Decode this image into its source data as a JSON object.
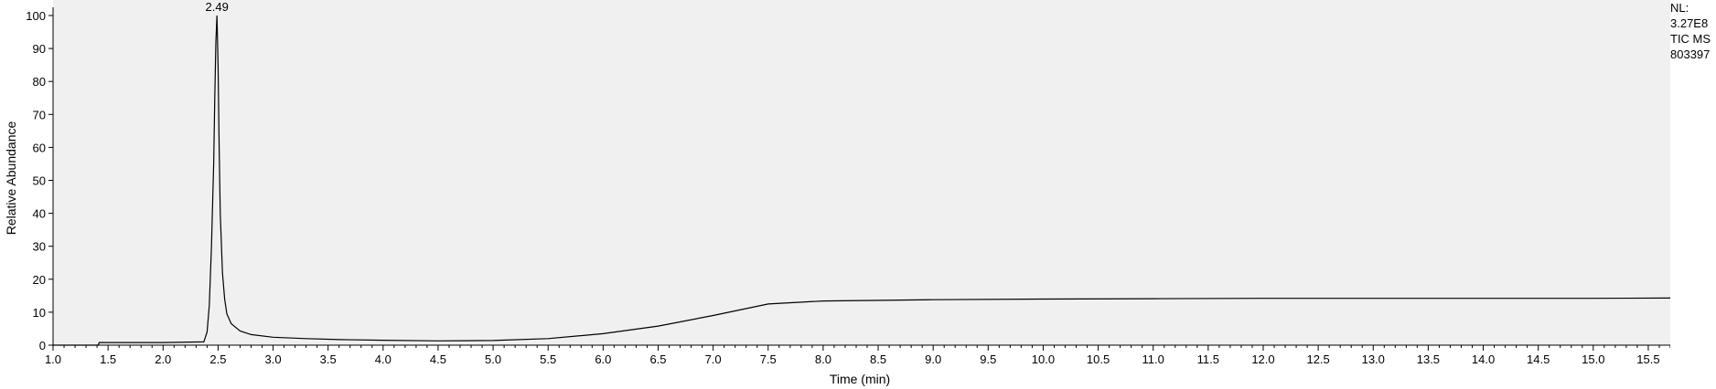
{
  "chart_data": {
    "type": "line",
    "xlabel": "Time (min)",
    "ylabel": "Relative Abundance",
    "xlim": [
      1.0,
      15.7
    ],
    "ylim": [
      0,
      100
    ],
    "xticks": [
      "1.0",
      "1.5",
      "2.0",
      "2.5",
      "3.0",
      "3.5",
      "4.0",
      "4.5",
      "5.0",
      "5.5",
      "6.0",
      "6.5",
      "7.0",
      "7.5",
      "8.0",
      "8.5",
      "9.0",
      "9.5",
      "10.0",
      "10.5",
      "11.0",
      "11.5",
      "12.0",
      "12.5",
      "13.0",
      "13.5",
      "14.0",
      "14.5",
      "15.0",
      "15.5"
    ],
    "yticks": [
      "0",
      "10",
      "20",
      "30",
      "40",
      "50",
      "60",
      "70",
      "80",
      "90",
      "100"
    ],
    "peak_label": "2.49",
    "grid": false,
    "series": [
      {
        "x": [
          1.0,
          1.41,
          1.42,
          2.0,
          2.37,
          2.4,
          2.42,
          2.44,
          2.46,
          2.47,
          2.48,
          2.49,
          2.5,
          2.51,
          2.52,
          2.54,
          2.56,
          2.58,
          2.62,
          2.7,
          2.8,
          3.0,
          3.3,
          3.6,
          4.0,
          4.5,
          5.0,
          5.5,
          6.0,
          6.5,
          7.0,
          7.5,
          8.0,
          9.0,
          10.0,
          11.0,
          12.0,
          13.0,
          14.0,
          15.0,
          15.7
        ],
        "y": [
          0,
          0,
          0.8,
          0.8,
          1.0,
          4,
          12,
          30,
          55,
          75,
          92,
          100,
          85,
          60,
          40,
          22,
          14,
          9.5,
          6.5,
          4.3,
          3.2,
          2.4,
          2.0,
          1.7,
          1.5,
          1.3,
          1.4,
          2.0,
          3.5,
          5.8,
          9.0,
          12.5,
          13.4,
          13.8,
          14.0,
          14.1,
          14.2,
          14.2,
          14.2,
          14.2,
          14.3
        ]
      }
    ]
  },
  "side_info": {
    "nl_label": "NL:",
    "nl_value": "3.27E8",
    "trace": "TIC  MS",
    "file": "803397"
  },
  "colors": {
    "plot_bg": "#f0f0f0",
    "trace": "#000000",
    "axis": "#000000"
  }
}
